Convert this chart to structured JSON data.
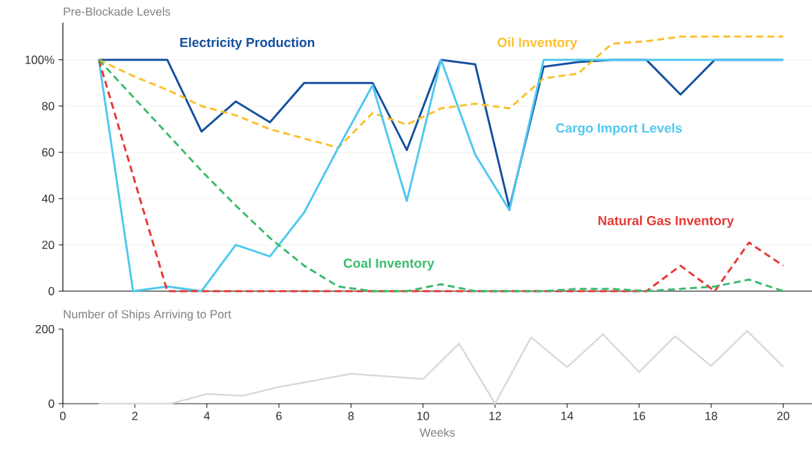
{
  "chart_data": [
    {
      "type": "line",
      "ylabel": "Pre-Blockade Levels",
      "x": [
        1,
        1.95,
        2.9,
        3.85,
        4.8,
        5.75,
        6.7,
        7.65,
        8.6,
        9.55,
        10.5,
        11.45,
        12.4,
        13.35,
        14.3,
        15.25,
        16.2,
        17.15,
        18.1,
        19.05,
        20
      ],
      "xlim": [
        0,
        20.8
      ],
      "ylim": [
        0,
        116
      ],
      "yticks": [
        0,
        20,
        40,
        60,
        80,
        {
          "value": 100,
          "label": "100%"
        }
      ],
      "tick_labels": "y",
      "grid": "y",
      "marker": "none",
      "series": [
        {
          "name": "Electricity Production",
          "color": "#1450a0",
          "line_style": "solid",
          "values": [
            100,
            100,
            100,
            69,
            82,
            73,
            90,
            90,
            90,
            61,
            100,
            98,
            36,
            97,
            99,
            100,
            100,
            85,
            100,
            100,
            100
          ]
        },
        {
          "name": "Oil Inventory",
          "color": "#fbc02d",
          "line_style": "dashed",
          "values": [
            100,
            93,
            87,
            80,
            76,
            70,
            66,
            62,
            77,
            72,
            79,
            81,
            79,
            92,
            94,
            107,
            108,
            110,
            110,
            110,
            110
          ]
        },
        {
          "name": "Cargo Import Levels",
          "color": "#4fc8f0",
          "line_style": "solid",
          "values": [
            100,
            0,
            2,
            0,
            20,
            15,
            34,
            62,
            89,
            39,
            100,
            59,
            35,
            100,
            100,
            100,
            100,
            100,
            100,
            100,
            100
          ]
        },
        {
          "name": "Natural Gas Inventory",
          "color": "#e53935",
          "line_style": "dashed",
          "values": [
            100,
            50,
            0,
            0,
            0,
            0,
            0,
            0,
            0,
            0,
            0,
            0,
            0,
            0,
            0,
            0,
            0,
            11,
            0,
            21,
            11
          ]
        },
        {
          "name": "Coal Inventory",
          "color": "#3dba6f",
          "line_style": "dashed",
          "values": [
            100,
            84,
            68,
            52,
            37,
            23,
            11,
            2,
            0,
            0,
            3,
            0,
            0,
            0,
            1,
            1,
            0,
            1,
            2,
            5,
            0
          ]
        }
      ]
    },
    {
      "type": "line",
      "ylabel": "Number of Ships Arriving to Port",
      "xlabel": "Weeks",
      "x": [
        1,
        2,
        3,
        4,
        5,
        6,
        7,
        8,
        9,
        10,
        11,
        12,
        13,
        14,
        15,
        16,
        17,
        18,
        19,
        20
      ],
      "xlim": [
        0,
        20.8
      ],
      "ylim": [
        0,
        200
      ],
      "xticks": [
        0,
        2,
        4,
        6,
        8,
        10,
        12,
        14,
        16,
        18,
        20
      ],
      "yticks": [
        0,
        200
      ],
      "grid": false,
      "marker": "none",
      "series": [
        {
          "color": "#d9d9d9",
          "line_style": "solid",
          "values": [
            0,
            0,
            0,
            26,
            21,
            45,
            62,
            80,
            73,
            66,
            161,
            0,
            178,
            98,
            186,
            85,
            181,
            101,
            195,
            99
          ]
        }
      ]
    }
  ]
}
